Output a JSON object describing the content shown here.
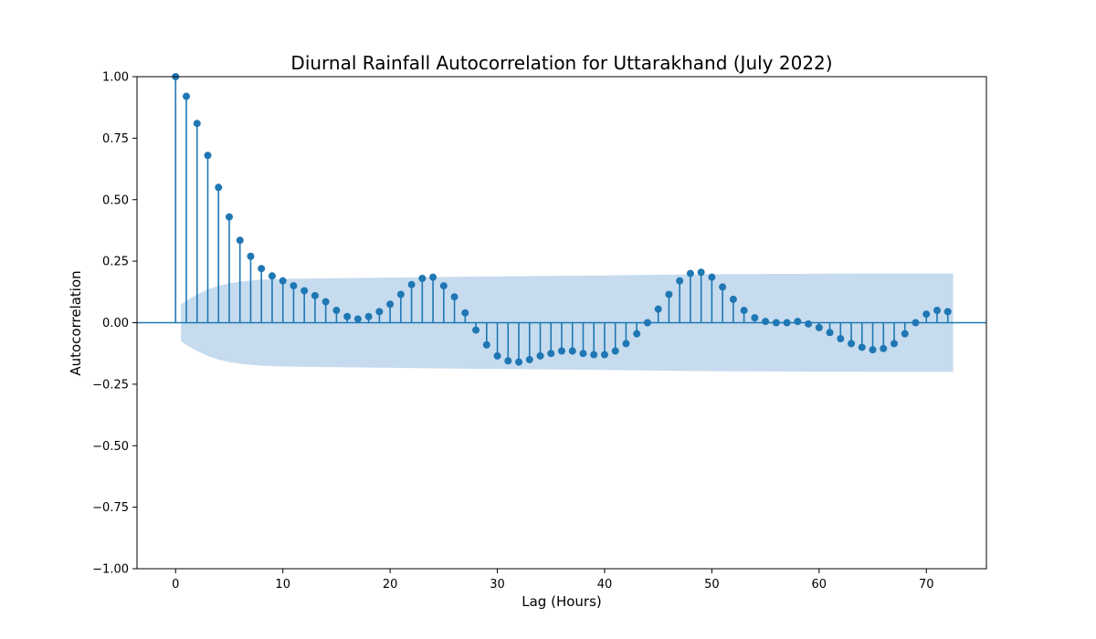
{
  "chart_data": {
    "type": "stem",
    "title": "Diurnal Rainfall Autocorrelation for Uttarakhand (July 2022)",
    "xlabel": "Lag (Hours)",
    "ylabel": "Autocorrelation",
    "xlim": [
      -3.6,
      75.6
    ],
    "ylim": [
      -1.0,
      1.0
    ],
    "xticks": [
      0,
      10,
      20,
      30,
      40,
      50,
      60,
      70
    ],
    "xtick_labels": [
      "0",
      "10",
      "20",
      "30",
      "40",
      "50",
      "60",
      "70"
    ],
    "yticks": [
      1.0,
      0.75,
      0.5,
      0.25,
      0.0,
      -0.25,
      -0.5,
      -0.75,
      -1.0
    ],
    "ytick_labels": [
      "1.00",
      "0.75",
      "0.50",
      "0.25",
      "0.00",
      "−0.25",
      "−0.50",
      "−0.75",
      "−1.00"
    ],
    "grid": false,
    "series_color": "#1f77b4",
    "band_color": "#c6dbee",
    "x": [
      0,
      1,
      2,
      3,
      4,
      5,
      6,
      7,
      8,
      9,
      10,
      11,
      12,
      13,
      14,
      15,
      16,
      17,
      18,
      19,
      20,
      21,
      22,
      23,
      24,
      25,
      26,
      27,
      28,
      29,
      30,
      31,
      32,
      33,
      34,
      35,
      36,
      37,
      38,
      39,
      40,
      41,
      42,
      43,
      44,
      45,
      46,
      47,
      48,
      49,
      50,
      51,
      52,
      53,
      54,
      55,
      56,
      57,
      58,
      59,
      60,
      61,
      62,
      63,
      64,
      65,
      66,
      67,
      68,
      69,
      70,
      71,
      72
    ],
    "values": [
      1.0,
      0.92,
      0.81,
      0.68,
      0.55,
      0.43,
      0.335,
      0.27,
      0.22,
      0.19,
      0.17,
      0.15,
      0.13,
      0.11,
      0.085,
      0.05,
      0.025,
      0.015,
      0.025,
      0.045,
      0.075,
      0.115,
      0.155,
      0.18,
      0.185,
      0.15,
      0.105,
      0.04,
      -0.03,
      -0.09,
      -0.135,
      -0.155,
      -0.16,
      -0.15,
      -0.135,
      -0.125,
      -0.115,
      -0.115,
      -0.125,
      -0.13,
      -0.13,
      -0.115,
      -0.085,
      -0.045,
      0.0,
      0.055,
      0.115,
      0.17,
      0.2,
      0.205,
      0.185,
      0.145,
      0.095,
      0.05,
      0.02,
      0.005,
      0.0,
      0.0,
      0.005,
      -0.005,
      -0.02,
      -0.04,
      -0.065,
      -0.085,
      -0.1,
      -0.11,
      -0.105,
      -0.085,
      -0.045,
      0.0,
      0.035,
      0.05,
      0.045
    ],
    "confidence_band": {
      "x": [
        0.5,
        1,
        2,
        3,
        4,
        5,
        6,
        8,
        10,
        15,
        20,
        25,
        30,
        35,
        40,
        45,
        50,
        55,
        60,
        65,
        70,
        72.5
      ],
      "upper": [
        0.075,
        0.09,
        0.115,
        0.135,
        0.15,
        0.16,
        0.167,
        0.175,
        0.178,
        0.181,
        0.183,
        0.186,
        0.188,
        0.19,
        0.192,
        0.195,
        0.197,
        0.198,
        0.199,
        0.2,
        0.2,
        0.2
      ]
    }
  }
}
